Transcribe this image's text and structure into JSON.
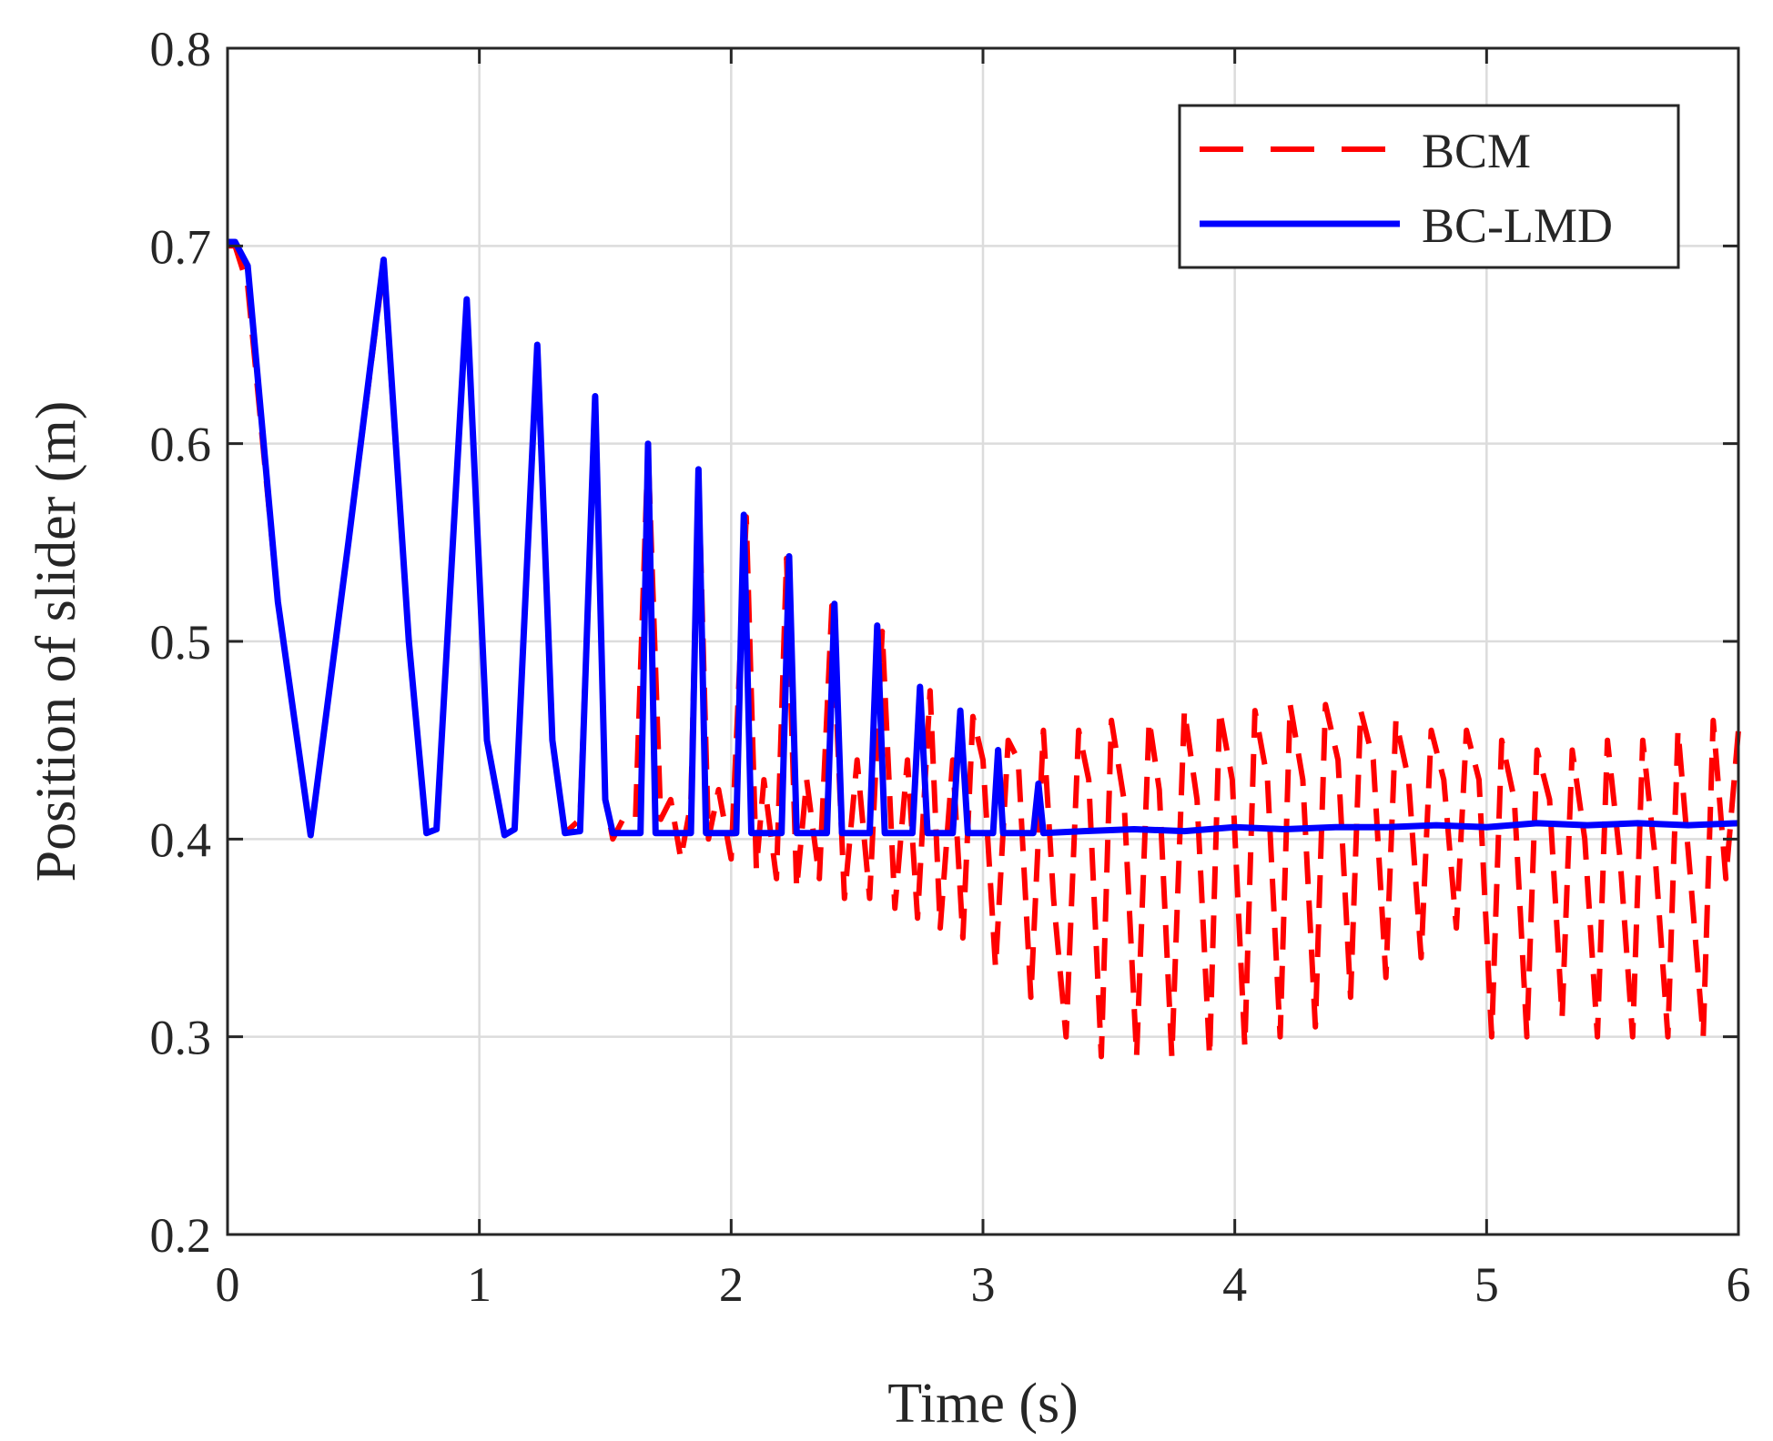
{
  "chart_data": {
    "type": "line",
    "title": "",
    "xlabel": "Time (s)",
    "ylabel": "Position of slider (m)",
    "xlim": [
      0,
      6
    ],
    "ylim": [
      0.2,
      0.8
    ],
    "xticks": [
      0,
      1,
      2,
      3,
      4,
      5,
      6
    ],
    "yticks": [
      0.2,
      0.3,
      0.4,
      0.5,
      0.6,
      0.7,
      0.8
    ],
    "xtick_labels": [
      "0",
      "1",
      "2",
      "3",
      "4",
      "5",
      "6"
    ],
    "ytick_labels": [
      "0.2",
      "0.3",
      "0.4",
      "0.5",
      "0.6",
      "0.7",
      "0.8"
    ],
    "grid": true,
    "legend_position": "top-right",
    "series": [
      {
        "name": "BCM",
        "color": "#ff0000",
        "style": "dashed",
        "x": [
          0,
          0.03,
          0.08,
          0.2,
          0.33,
          0.48,
          0.62,
          0.72,
          0.79,
          0.83,
          0.95,
          1.03,
          1.1,
          1.14,
          1.23,
          1.29,
          1.34,
          1.4,
          1.46,
          1.5,
          1.53,
          1.57,
          1.62,
          1.67,
          1.72,
          1.76,
          1.8,
          1.84,
          1.87,
          1.91,
          1.95,
          2.0,
          2.06,
          2.1,
          2.13,
          2.18,
          2.22,
          2.26,
          2.3,
          2.35,
          2.4,
          2.45,
          2.5,
          2.55,
          2.6,
          2.65,
          2.7,
          2.74,
          2.79,
          2.83,
          2.88,
          2.92,
          2.96,
          3.0,
          3.05,
          3.1,
          3.14,
          3.19,
          3.24,
          3.28,
          3.33,
          3.38,
          3.42,
          3.47,
          3.51,
          3.56,
          3.61,
          3.66,
          3.7,
          3.75,
          3.8,
          3.85,
          3.9,
          3.94,
          3.99,
          4.04,
          4.08,
          4.13,
          4.18,
          4.22,
          4.27,
          4.32,
          4.36,
          4.41,
          4.46,
          4.5,
          4.55,
          4.6,
          4.64,
          4.69,
          4.74,
          4.78,
          4.83,
          4.88,
          4.92,
          4.97,
          5.02,
          5.06,
          5.11,
          5.16,
          5.2,
          5.25,
          5.3,
          5.34,
          5.39,
          5.44,
          5.48,
          5.53,
          5.58,
          5.62,
          5.67,
          5.72,
          5.76,
          5.81,
          5.86,
          5.9,
          5.95,
          6.0
        ],
        "values": [
          0.7,
          0.7,
          0.68,
          0.52,
          0.402,
          0.55,
          0.69,
          0.5,
          0.403,
          0.405,
          0.672,
          0.45,
          0.402,
          0.405,
          0.648,
          0.45,
          0.403,
          0.41,
          0.622,
          0.42,
          0.4,
          0.41,
          0.41,
          0.598,
          0.41,
          0.42,
          0.39,
          0.418,
          0.585,
          0.4,
          0.425,
          0.39,
          0.563,
          0.385,
          0.43,
          0.38,
          0.542,
          0.375,
          0.43,
          0.38,
          0.518,
          0.37,
          0.44,
          0.37,
          0.505,
          0.365,
          0.44,
          0.36,
          0.475,
          0.355,
          0.44,
          0.35,
          0.462,
          0.44,
          0.335,
          0.45,
          0.44,
          0.32,
          0.455,
          0.37,
          0.3,
          0.455,
          0.43,
          0.29,
          0.46,
          0.42,
          0.29,
          0.46,
          0.425,
          0.29,
          0.465,
          0.42,
          0.29,
          0.465,
          0.43,
          0.295,
          0.465,
          0.43,
          0.3,
          0.468,
          0.43,
          0.305,
          0.468,
          0.44,
          0.32,
          0.465,
          0.44,
          0.33,
          0.46,
          0.43,
          0.34,
          0.455,
          0.43,
          0.355,
          0.455,
          0.43,
          0.3,
          0.45,
          0.42,
          0.3,
          0.445,
          0.42,
          0.31,
          0.445,
          0.4,
          0.3,
          0.45,
          0.39,
          0.3,
          0.45,
          0.39,
          0.3,
          0.455,
          0.38,
          0.3,
          0.46,
          0.38,
          0.455
        ]
      },
      {
        "name": "BC-LMD",
        "color": "#0000ff",
        "style": "solid",
        "x": [
          0,
          0.03,
          0.08,
          0.2,
          0.33,
          0.48,
          0.62,
          0.72,
          0.79,
          0.83,
          0.95,
          1.03,
          1.1,
          1.14,
          1.23,
          1.29,
          1.34,
          1.4,
          1.46,
          1.5,
          1.53,
          1.64,
          1.67,
          1.7,
          1.84,
          1.87,
          1.9,
          2.02,
          2.05,
          2.08,
          2.2,
          2.23,
          2.26,
          2.38,
          2.41,
          2.44,
          2.55,
          2.58,
          2.61,
          2.72,
          2.75,
          2.78,
          2.88,
          2.91,
          2.94,
          3.04,
          3.06,
          3.08,
          3.2,
          3.22,
          3.24,
          3.4,
          3.6,
          3.8,
          4.0,
          4.2,
          4.4,
          4.6,
          4.8,
          5.0,
          5.2,
          5.4,
          5.6,
          5.8,
          6.0
        ],
        "values": [
          0.702,
          0.702,
          0.69,
          0.52,
          0.402,
          0.55,
          0.693,
          0.5,
          0.403,
          0.405,
          0.673,
          0.45,
          0.402,
          0.405,
          0.65,
          0.45,
          0.403,
          0.404,
          0.624,
          0.42,
          0.403,
          0.403,
          0.6,
          0.403,
          0.403,
          0.587,
          0.403,
          0.403,
          0.564,
          0.403,
          0.403,
          0.543,
          0.403,
          0.403,
          0.519,
          0.403,
          0.403,
          0.508,
          0.403,
          0.403,
          0.477,
          0.403,
          0.403,
          0.465,
          0.403,
          0.403,
          0.445,
          0.403,
          0.403,
          0.428,
          0.403,
          0.404,
          0.405,
          0.404,
          0.406,
          0.405,
          0.406,
          0.406,
          0.407,
          0.406,
          0.408,
          0.407,
          0.408,
          0.407,
          0.408
        ]
      }
    ]
  }
}
